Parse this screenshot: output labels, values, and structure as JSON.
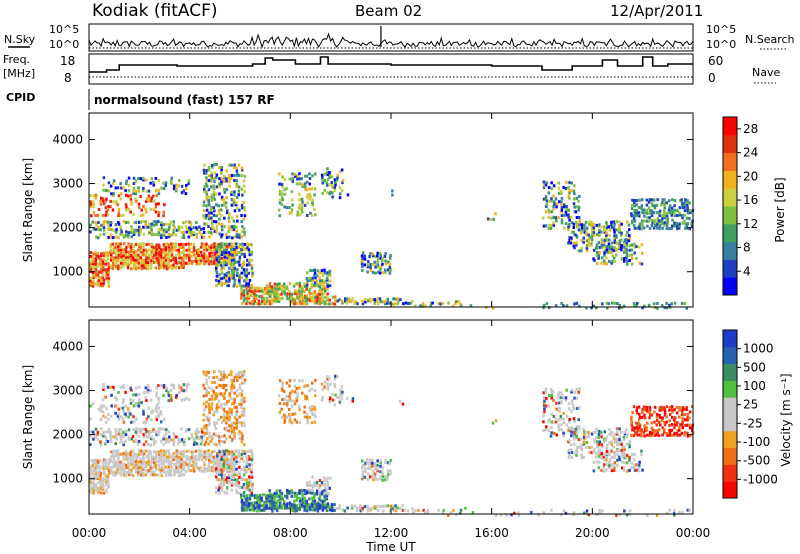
{
  "header": {
    "station": "Kodiak (fitACF)",
    "beam": "Beam 02",
    "date": "12/Apr/2011"
  },
  "left_labels": {
    "nsky": "N.Sky",
    "freq_line1": "Freq.",
    "freq_line2": "[MHz]",
    "cpid": "CPID"
  },
  "right_labels": {
    "nsearch": "N.Search",
    "nave": "Nave"
  },
  "strip_ticks": {
    "noise_left": [
      "10^5",
      "10^0"
    ],
    "noise_right": [
      "10^5",
      "10^0"
    ],
    "freq_left": [
      "18",
      "8"
    ],
    "nave_right": [
      "60",
      "0"
    ]
  },
  "cpid_text": "normalsound (fast) 157 RF",
  "colors": {
    "power_scale": [
      "#0000ff",
      "#1f3fc0",
      "#3a7fa0",
      "#3fa060",
      "#7fc040",
      "#c8d040",
      "#f0b020",
      "#f07020",
      "#e03010",
      "#ff0000"
    ],
    "velocity_scale": [
      "#1e3cc8",
      "#2860b0",
      "#3c8c60",
      "#50c040",
      "#c8c8c8",
      "#c8c8c8",
      "#f0a020",
      "#f07018",
      "#f03010",
      "#ff0000"
    ]
  },
  "chart_data": [
    {
      "type": "heatmap",
      "panel": "power",
      "ylabel": "Slant Range [km]",
      "yticks": [
        "1000",
        "2000",
        "3000",
        "4000"
      ],
      "ylim": [
        200,
        4600
      ],
      "colorbar_label": "Power [dB]",
      "colorbar_ticks": [
        "4",
        "8",
        "12",
        "16",
        "20",
        "24",
        "28"
      ],
      "colorbar_range": [
        0,
        30
      ]
    },
    {
      "type": "heatmap",
      "panel": "velocity",
      "ylabel": "Slant Range [km]",
      "yticks": [
        "1000",
        "2000",
        "3000",
        "4000"
      ],
      "ylim": [
        200,
        4600
      ],
      "colorbar_label": "Velocity [m s⁻¹]",
      "colorbar_ticks": [
        "1000",
        "500",
        "100",
        "25",
        "-25",
        "-100",
        "-500",
        "-1000"
      ]
    }
  ],
  "xaxis": {
    "ticks": [
      "00:00",
      "04:00",
      "08:00",
      "12:00",
      "16:00",
      "20:00",
      "00:00"
    ],
    "label": "Time UT"
  }
}
